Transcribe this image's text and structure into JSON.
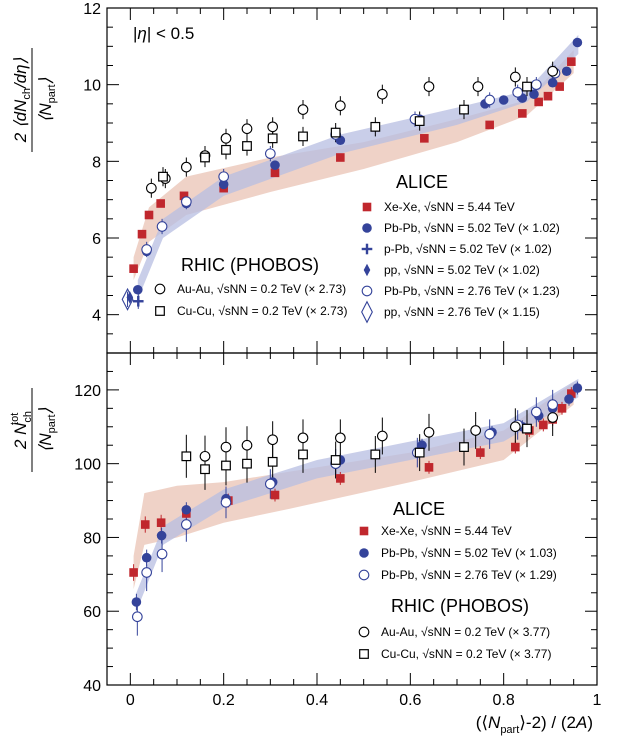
{
  "chart_data": [
    {
      "type": "scatter",
      "panel": "top",
      "ylabel": "2/⟨N_part⟩ ⟨dN_ch/dη⟩",
      "xlim": [
        -0.05,
        1.0
      ],
      "ylim": [
        3.0,
        12.0
      ],
      "yticks": [
        4,
        6,
        8,
        10,
        12
      ],
      "annotation": "|η| < 0.5",
      "groups": [
        "ALICE",
        "RHIC (PHOBOS)"
      ],
      "series": [
        {
          "name": "Xe-Xe, √sNN = 5.44 TeV",
          "group": "ALICE",
          "marker": "square-filled",
          "color": "#c0272d",
          "x": [
            0.007,
            0.025,
            0.04,
            0.065,
            0.115,
            0.2,
            0.31,
            0.45,
            0.63,
            0.77,
            0.84,
            0.875,
            0.895,
            0.92,
            0.945
          ],
          "y": [
            5.2,
            6.1,
            6.6,
            6.9,
            7.1,
            7.3,
            7.7,
            8.1,
            8.6,
            8.95,
            9.25,
            9.55,
            9.7,
            9.95,
            10.6
          ],
          "band": {
            "color": "#e9c3b4",
            "x": [
              0.007,
              0.04,
              0.12,
              0.3,
              0.5,
              0.7,
              0.85,
              0.95
            ],
            "lo": [
              4.9,
              5.9,
              6.6,
              7.2,
              7.8,
              8.5,
              9.2,
              10.3
            ],
            "hi": [
              5.5,
              6.8,
              7.6,
              8.1,
              8.5,
              9.1,
              9.6,
              10.9
            ]
          }
        },
        {
          "name": "Pb-Pb, √sNN = 5.02 TeV (× 1.02)",
          "group": "ALICE",
          "marker": "circle-filled",
          "color": "#34439a",
          "x": [
            0.016,
            0.035,
            0.068,
            0.12,
            0.2,
            0.31,
            0.45,
            0.62,
            0.76,
            0.8,
            0.84,
            0.865,
            0.905,
            0.935,
            0.958
          ],
          "y": [
            4.65,
            5.65,
            6.3,
            6.9,
            7.4,
            7.9,
            8.55,
            9.1,
            9.5,
            9.6,
            9.65,
            9.75,
            10.05,
            10.35,
            11.1
          ],
          "band": {
            "color": "#b7bde2",
            "x": [
              0.016,
              0.07,
              0.2,
              0.45,
              0.7,
              0.85,
              0.96
            ],
            "lo": [
              4.4,
              6.0,
              7.1,
              8.2,
              8.95,
              9.55,
              10.8
            ],
            "hi": [
              4.9,
              6.5,
              7.6,
              8.7,
              9.4,
              9.85,
              11.3
            ]
          }
        },
        {
          "name": "p-Pb, √sNN = 5.02 TeV (× 1.02)",
          "group": "ALICE",
          "marker": "plus",
          "color": "#34439a",
          "x": [
            0.017
          ],
          "y": [
            4.35
          ]
        },
        {
          "name": "pp, √sNN = 5.02 TeV (× 1.02)",
          "group": "ALICE",
          "marker": "diamond-filled",
          "color": "#34439a",
          "x": [
            -0.001
          ],
          "y": [
            4.45
          ]
        },
        {
          "name": "Pb-Pb, √sNN = 2.76 TeV (× 1.23)",
          "group": "ALICE",
          "marker": "circle-open",
          "color": "#34439a",
          "x": [
            0.035,
            0.068,
            0.12,
            0.2,
            0.3,
            0.44,
            0.61,
            0.77,
            0.83,
            0.87,
            0.91
          ],
          "y": [
            5.7,
            6.3,
            6.95,
            7.6,
            8.2,
            8.7,
            9.1,
            9.6,
            9.8,
            10.0,
            10.3
          ]
        },
        {
          "name": "pp, √sNN = 2.76 TeV (× 1.15)",
          "group": "ALICE",
          "marker": "diamond-open",
          "color": "#34439a",
          "x": [
            -0.006
          ],
          "y": [
            4.4
          ]
        },
        {
          "name": "Au-Au, √sNN = 0.2 TeV (× 2.73)",
          "group": "RHIC (PHOBOS)",
          "marker": "circle-open",
          "color": "#000000",
          "x": [
            0.045,
            0.075,
            0.12,
            0.16,
            0.205,
            0.25,
            0.305,
            0.37,
            0.45,
            0.54,
            0.64,
            0.745,
            0.825,
            0.905
          ],
          "y": [
            7.3,
            7.55,
            7.85,
            8.15,
            8.6,
            8.85,
            8.9,
            9.35,
            9.45,
            9.75,
            9.95,
            9.95,
            10.2,
            10.35
          ]
        },
        {
          "name": "Cu-Cu, √sNN = 0.2 TeV (× 2.73)",
          "group": "RHIC (PHOBOS)",
          "marker": "square-open",
          "color": "#000000",
          "x": [
            0.07,
            0.16,
            0.205,
            0.25,
            0.305,
            0.37,
            0.44,
            0.525,
            0.62,
            0.715,
            0.85
          ],
          "y": [
            7.6,
            8.1,
            8.3,
            8.4,
            8.6,
            8.65,
            8.75,
            8.9,
            9.05,
            9.35,
            9.95
          ]
        }
      ]
    },
    {
      "type": "scatter",
      "panel": "bottom",
      "ylabel": "2/⟨N_part⟩ N_ch^tot",
      "xlabel": "(⟨N_part⟩-2) / (2A)",
      "xlim": [
        -0.05,
        1.0
      ],
      "ylim": [
        40,
        130
      ],
      "xticks": [
        0,
        0.2,
        0.4,
        0.6,
        0.8,
        1
      ],
      "yticks": [
        40,
        60,
        80,
        100,
        120
      ],
      "groups": [
        "ALICE",
        "RHIC (PHOBOS)"
      ],
      "series": [
        {
          "name": "Xe-Xe, √sNN = 5.44 TeV",
          "group": "ALICE",
          "marker": "square-filled",
          "color": "#c0272d",
          "x": [
            0.007,
            0.032,
            0.066,
            0.12,
            0.21,
            0.31,
            0.45,
            0.64,
            0.75,
            0.825,
            0.855,
            0.885,
            0.905,
            0.925,
            0.945
          ],
          "y": [
            70.5,
            83.5,
            84.0,
            86.5,
            90.0,
            91.5,
            96.0,
            99.0,
            103.0,
            104.5,
            109.0,
            110.5,
            112.0,
            115.0,
            119.0
          ],
          "band": {
            "color": "#e9c3b4",
            "x": [
              0.007,
              0.03,
              0.1,
              0.2,
              0.35,
              0.6,
              0.8,
              0.95
            ],
            "lo": [
              66,
              78,
              80,
              84,
              88,
              95,
              101,
              116
            ],
            "hi": [
              75,
              92,
              94,
              95,
              98,
              103,
              109,
              122
            ]
          }
        },
        {
          "name": "Pb-Pb, √sNN = 5.02 TeV (× 1.03)",
          "group": "ALICE",
          "marker": "circle-filled",
          "color": "#34439a",
          "x": [
            0.013,
            0.035,
            0.067,
            0.12,
            0.205,
            0.305,
            0.45,
            0.625,
            0.775,
            0.84,
            0.875,
            0.905,
            0.94,
            0.958
          ],
          "y": [
            62.5,
            74.5,
            80.5,
            87.5,
            90.5,
            95.0,
            101.0,
            105.0,
            108.5,
            110.0,
            113.0,
            115.0,
            117.5,
            120.5
          ],
          "band": {
            "color": "#b7bde2",
            "x": [
              0.013,
              0.07,
              0.2,
              0.4,
              0.6,
              0.8,
              0.96
            ],
            "lo": [
              60,
              78,
              88,
              96,
              101,
              106,
              118
            ],
            "hi": [
              65,
              83,
              93,
              101,
              106,
              111,
              123
            ]
          }
        },
        {
          "name": "Pb-Pb, √sNN = 2.76 TeV (× 1.29)",
          "group": "ALICE",
          "marker": "circle-open",
          "color": "#34439a",
          "x": [
            0.015,
            0.035,
            0.068,
            0.12,
            0.205,
            0.3,
            0.44,
            0.615,
            0.77,
            0.83,
            0.87,
            0.905
          ],
          "y": [
            58.5,
            70.5,
            75.5,
            83.5,
            89.5,
            94.5,
            100.0,
            103.0,
            108.0,
            110.5,
            114.0,
            116.0
          ]
        },
        {
          "name": "Au-Au, √sNN = 0.2 TeV (× 3.77)",
          "group": "RHIC (PHOBOS)",
          "marker": "circle-open",
          "color": "#000000",
          "x": [
            0.16,
            0.205,
            0.25,
            0.305,
            0.37,
            0.45,
            0.54,
            0.64,
            0.74,
            0.825,
            0.905
          ],
          "y": [
            102.0,
            104.5,
            105.0,
            106.5,
            107.0,
            107.0,
            107.5,
            108.5,
            109.0,
            110.0,
            112.5
          ]
        },
        {
          "name": "Cu-Cu, √sNN = 0.2 TeV (× 3.77)",
          "group": "RHIC (PHOBOS)",
          "marker": "square-open",
          "color": "#000000",
          "x": [
            0.12,
            0.16,
            0.205,
            0.25,
            0.305,
            0.37,
            0.44,
            0.525,
            0.62,
            0.715,
            0.85
          ],
          "y": [
            102.0,
            98.5,
            99.5,
            100.0,
            100.5,
            102.5,
            101.0,
            102.5,
            103.0,
            104.5,
            109.5
          ]
        }
      ]
    }
  ]
}
